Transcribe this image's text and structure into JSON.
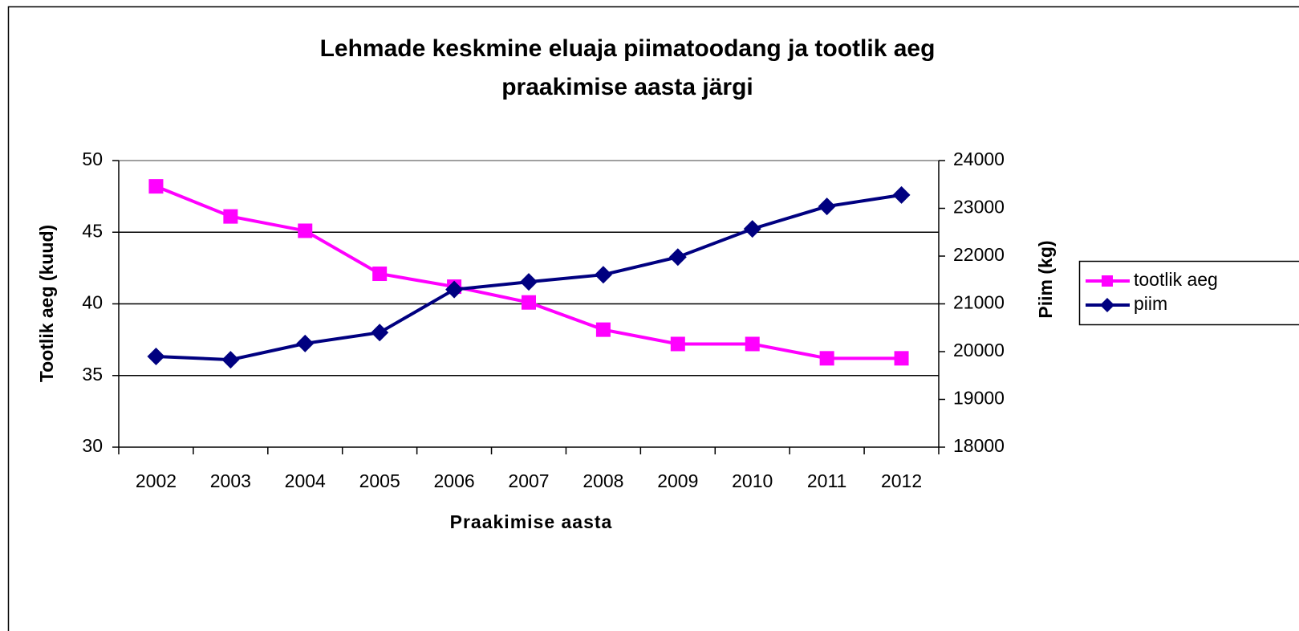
{
  "chart_data": {
    "type": "line",
    "title": [
      "Lehmade keskmine eluaja piimatoodang ja tootlik aeg",
      "praakimise aasta järgi"
    ],
    "x_label": "Praakimise aasta",
    "y_label": "Tootlik aeg (kuud)",
    "y2_label": "Piim (kg)",
    "categories": [
      "2002",
      "2003",
      "2004",
      "2005",
      "2006",
      "2007",
      "2008",
      "2009",
      "2010",
      "2011",
      "2012"
    ],
    "series": [
      {
        "name": "tootlik aeg",
        "color": "#ff00ff",
        "marker": "square",
        "values": [
          48.2,
          46.1,
          45.1,
          42.1,
          41.2,
          40.1,
          38.2,
          37.2,
          37.2,
          36.2,
          36.2
        ]
      },
      {
        "name": "piim",
        "color": "#000080",
        "marker": "diamond",
        "axis": "y2",
        "values": [
          19900,
          19830,
          20170,
          20400,
          21300,
          21460,
          21610,
          21980,
          22570,
          23040,
          23280
        ]
      }
    ],
    "ylim": [
      30,
      50
    ],
    "yticks": [
      30,
      35,
      40,
      45,
      50
    ],
    "y2lim": [
      18000,
      24000
    ],
    "y2ticks": [
      18000,
      19000,
      20000,
      21000,
      22000,
      23000,
      24000
    ],
    "grid": true,
    "legend": "right"
  }
}
